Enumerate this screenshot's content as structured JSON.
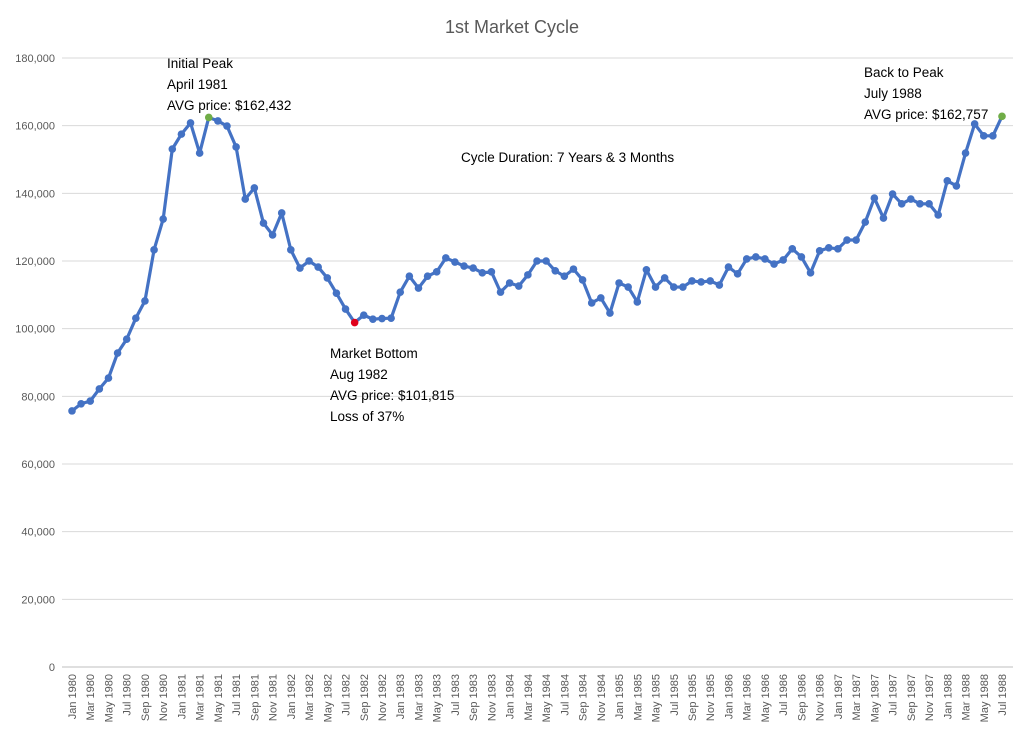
{
  "chart_data": {
    "type": "line",
    "title": "1st Market Cycle",
    "xlabel": "",
    "ylabel": "",
    "ylim": [
      0,
      180000
    ],
    "yticks": [
      0,
      20000,
      40000,
      60000,
      80000,
      100000,
      120000,
      140000,
      160000,
      180000
    ],
    "ytick_labels": [
      "0",
      "20,000",
      "40,000",
      "60,000",
      "80,000",
      "100,000",
      "120,000",
      "140,000",
      "160,000",
      "180,000"
    ],
    "grid": true,
    "legend": "none",
    "colors": {
      "line": "#4472C4",
      "peak_marker": "#70AD47",
      "bottom_marker": "#E0001B",
      "grid": "#D9D9D9"
    },
    "x": [
      "Jan 1980",
      "Feb 1980",
      "Mar 1980",
      "Apr 1980",
      "May 1980",
      "Jun 1980",
      "Jul 1980",
      "Aug 1980",
      "Sep 1980",
      "Oct 1980",
      "Nov 1980",
      "Dec 1980",
      "Jan 1981",
      "Feb 1981",
      "Mar 1981",
      "Apr 1981",
      "May 1981",
      "Jun 1981",
      "Jul 1981",
      "Aug 1981",
      "Sep 1981",
      "Oct 1981",
      "Nov 1981",
      "Dec 1981",
      "Jan 1982",
      "Feb 1982",
      "Mar 1982",
      "Apr 1982",
      "May 1982",
      "Jun 1982",
      "Jul 1982",
      "Aug 1982",
      "Sep 1982",
      "Oct 1982",
      "Nov 1982",
      "Dec 1982",
      "Jan 1983",
      "Feb 1983",
      "Mar 1983",
      "Apr 1983",
      "May 1983",
      "Jun 1983",
      "Jul 1983",
      "Aug 1983",
      "Sep 1983",
      "Oct 1983",
      "Nov 1983",
      "Dec 1983",
      "Jan 1984",
      "Feb 1984",
      "Mar 1984",
      "Apr 1984",
      "May 1984",
      "Jun 1984",
      "Jul 1984",
      "Aug 1984",
      "Sep 1984",
      "Oct 1984",
      "Nov 1984",
      "Dec 1984",
      "Jan 1985",
      "Feb 1985",
      "Mar 1985",
      "Apr 1985",
      "May 1985",
      "Jun 1985",
      "Jul 1985",
      "Aug 1985",
      "Sep 1985",
      "Oct 1985",
      "Nov 1985",
      "Dec 1985",
      "Jan 1986",
      "Feb 1986",
      "Mar 1986",
      "Apr 1986",
      "May 1986",
      "Jun 1986",
      "Jul 1986",
      "Aug 1986",
      "Sep 1986",
      "Oct 1986",
      "Nov 1986",
      "Dec 1986",
      "Jan 1987",
      "Feb 1987",
      "Mar 1987",
      "Apr 1987",
      "May 1987",
      "Jun 1987",
      "Jul 1987",
      "Aug 1987",
      "Sep 1987",
      "Oct 1987",
      "Nov 1987",
      "Dec 1987",
      "Jan 1988",
      "Feb 1988",
      "Mar 1988",
      "Apr 1988",
      "May 1988",
      "Jun 1988",
      "Jul 1988"
    ],
    "series": [
      {
        "values": [
          75700,
          77800,
          78600,
          82200,
          85400,
          92800,
          96900,
          103100,
          108200,
          123300,
          132400,
          153100,
          157500,
          160800,
          151900,
          162432,
          161400,
          159900,
          153700,
          138300,
          141600,
          131200,
          127700,
          134200,
          123300,
          117900,
          120000,
          118200,
          115000,
          110500,
          105800,
          101815,
          104000,
          102800,
          103000,
          103100,
          110800,
          115500,
          112000,
          115500,
          116800,
          120900,
          119700,
          118500,
          117900,
          116500,
          116800,
          110800,
          113500,
          112600,
          115900,
          120000,
          120000,
          117100,
          115500,
          117600,
          114400,
          107600,
          109100,
          104600,
          113500,
          112300,
          107900,
          117400,
          112300,
          115000,
          112300,
          112300,
          114100,
          113800,
          114100,
          112900,
          118200,
          116200,
          120600,
          121200,
          120600,
          119100,
          120300,
          123600,
          121200,
          116500,
          123000,
          123900,
          123600,
          126200,
          126200,
          131500,
          138600,
          132700,
          139800,
          136900,
          138300,
          136900,
          136900,
          133600,
          143700,
          142200,
          151900,
          160500,
          157000,
          157000,
          162757
        ]
      }
    ],
    "highlighted_points": [
      {
        "x": "Apr 1981",
        "marker": "peak_marker"
      },
      {
        "x": "Aug 1982",
        "marker": "bottom_marker"
      },
      {
        "x": "Jul 1988",
        "marker": "peak_marker"
      }
    ],
    "annotations": {
      "initial_peak": [
        "Initial Peak",
        "April 1981",
        "AVG price: $162,432"
      ],
      "market_bottom": [
        "Market Bottom",
        "Aug 1982",
        "AVG price: $101,815",
        "Loss of 37%"
      ],
      "back_to_peak": [
        "Back to Peak",
        "July 1988",
        "AVG price: $162,757"
      ],
      "cycle_duration": "Cycle Duration: 7 Years & 3 Months"
    }
  }
}
